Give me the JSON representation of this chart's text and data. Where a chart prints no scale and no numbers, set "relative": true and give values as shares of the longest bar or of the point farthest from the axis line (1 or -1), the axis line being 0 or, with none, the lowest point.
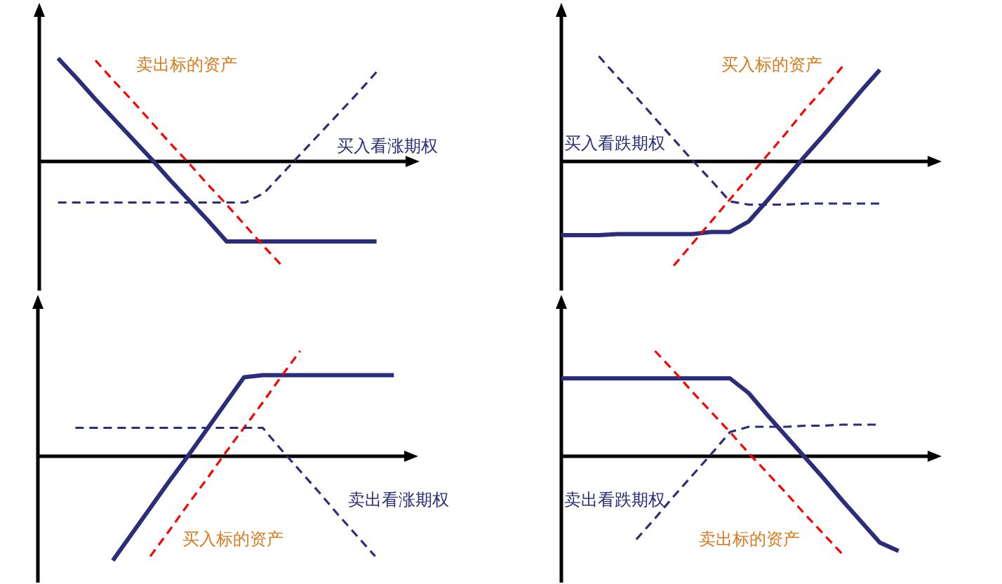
{
  "chart_data": [
    {
      "type": "line",
      "relative": true,
      "categories": [
        null,
        null,
        null,
        null,
        null,
        null,
        null,
        null,
        null,
        null,
        null,
        null,
        null,
        null,
        null,
        null,
        null,
        null,
        null,
        null,
        null
      ],
      "series": [
        {
          "color": "#2b2d7a",
          "line_style": "solid",
          "values": [
            null,
            0.98,
            0.79,
            0.59,
            0.4,
            0.21,
            0.02,
            -0.18,
            -0.37,
            -0.56,
            -0.76,
            -0.76,
            -0.76,
            -0.76,
            -0.76,
            -0.76,
            -0.76,
            -0.76,
            -0.76,
            null,
            null
          ]
        },
        {
          "name": "卖出标的资产",
          "color": "#ff0000",
          "line_style": "dashed",
          "values": [
            null,
            null,
            null,
            0.96,
            0.76,
            0.57,
            0.37,
            0.17,
            -0.02,
            -0.22,
            -0.41,
            -0.61,
            -0.81,
            -1,
            null,
            null,
            null,
            null,
            null,
            null,
            null
          ]
        },
        {
          "name": "买入看涨期权",
          "color": "#2b2d7a",
          "line_style": "dashed",
          "values": [
            null,
            -0.39,
            -0.39,
            -0.39,
            -0.39,
            -0.39,
            -0.39,
            -0.39,
            -0.39,
            -0.39,
            -0.39,
            -0.39,
            -0.3,
            -0.11,
            0.08,
            0.27,
            0.46,
            0.65,
            0.85,
            null,
            null
          ]
        }
      ]
    },
    {
      "type": "line",
      "relative": true,
      "categories": [
        null,
        null,
        null,
        null,
        null,
        null,
        null,
        null,
        null,
        null,
        null,
        null,
        null,
        null,
        null,
        null,
        null,
        null,
        null,
        null,
        null
      ],
      "series": [
        {
          "color": "#2b2d7a",
          "line_style": "solid",
          "values": [
            -0.7,
            -0.7,
            -0.7,
            -0.69,
            -0.69,
            -0.69,
            -0.69,
            -0.69,
            -0.67,
            -0.67,
            -0.57,
            -0.37,
            -0.16,
            0.05,
            0.25,
            0.46,
            0.67,
            0.87,
            null,
            null,
            null
          ]
        },
        {
          "name": "买入标的资产",
          "color": "#ff0000",
          "line_style": "dashed",
          "values": [
            null,
            null,
            null,
            null,
            null,
            null,
            -0.99,
            -0.78,
            -0.57,
            -0.36,
            -0.15,
            0.06,
            0.27,
            0.49,
            0.69,
            0.9,
            null,
            null,
            null,
            null,
            null
          ]
        },
        {
          "name": "买入看跌期权",
          "color": "#2b2d7a",
          "line_style": "dashed",
          "values": [
            null,
            null,
            1,
            0.8,
            0.61,
            0.41,
            0.21,
            0.01,
            -0.18,
            -0.38,
            -0.41,
            -0.41,
            -0.41,
            -0.4,
            -0.4,
            -0.4,
            -0.4,
            -0.4,
            null,
            null,
            null
          ]
        }
      ]
    },
    {
      "type": "line",
      "relative": true,
      "categories": [
        null,
        null,
        null,
        null,
        null,
        null,
        null,
        null,
        null,
        null,
        null,
        null,
        null,
        null,
        null,
        null,
        null,
        null,
        null,
        null,
        null
      ],
      "series": [
        {
          "color": "#2b2d7a",
          "line_style": "solid",
          "values": [
            null,
            null,
            null,
            null,
            -0.99,
            -0.74,
            -0.49,
            -0.24,
            0,
            0.25,
            0.5,
            0.75,
            0.77,
            0.77,
            0.77,
            0.77,
            0.77,
            0.77,
            0.77,
            0.77,
            null
          ]
        },
        {
          "name": "买入标的资产",
          "color": "#ff0000",
          "line_style": "dashed",
          "values": [
            null,
            null,
            null,
            null,
            null,
            null,
            -0.95,
            -0.71,
            -0.46,
            -0.22,
            0.03,
            0.27,
            0.51,
            0.76,
            1,
            null,
            null,
            null,
            null,
            null,
            null
          ]
        },
        {
          "name": "卖出看涨期权",
          "color": "#2b2d7a",
          "line_style": "dashed",
          "values": [
            null,
            null,
            0.27,
            0.27,
            0.27,
            0.27,
            0.27,
            0.27,
            0.27,
            0.27,
            0.27,
            0.27,
            0.27,
            0.06,
            -0.14,
            -0.34,
            -0.55,
            -0.75,
            -0.95,
            null,
            null
          ]
        }
      ]
    },
    {
      "type": "line",
      "relative": true,
      "categories": [
        null,
        null,
        null,
        null,
        null,
        null,
        null,
        null,
        null,
        null,
        null,
        null,
        null,
        null,
        null,
        null,
        null,
        null,
        null,
        null,
        null
      ],
      "series": [
        {
          "color": "#2b2d7a",
          "line_style": "solid",
          "values": [
            0.74,
            0.74,
            0.74,
            0.74,
            0.74,
            0.74,
            0.74,
            0.74,
            0.74,
            0.74,
            0.6,
            0.39,
            0.19,
            -0.01,
            -0.21,
            -0.42,
            -0.62,
            -0.82,
            -0.9,
            null,
            null
          ]
        },
        {
          "name": "卖出标的资产",
          "color": "#ff0000",
          "line_style": "dashed",
          "values": [
            null,
            null,
            null,
            null,
            null,
            1,
            0.81,
            0.61,
            0.42,
            0.23,
            0.03,
            -0.16,
            -0.35,
            -0.55,
            -0.74,
            -0.93,
            null,
            null,
            null,
            null,
            null
          ]
        },
        {
          "name": "卖出看跌期权",
          "color": "#2b2d7a",
          "line_style": "dashed",
          "values": [
            null,
            null,
            null,
            null,
            -0.79,
            -0.59,
            -0.38,
            -0.18,
            0.02,
            0.23,
            0.28,
            0.28,
            0.28,
            0.29,
            0.29,
            0.3,
            0.3,
            0.3,
            null,
            null,
            null
          ]
        }
      ]
    }
  ]
}
